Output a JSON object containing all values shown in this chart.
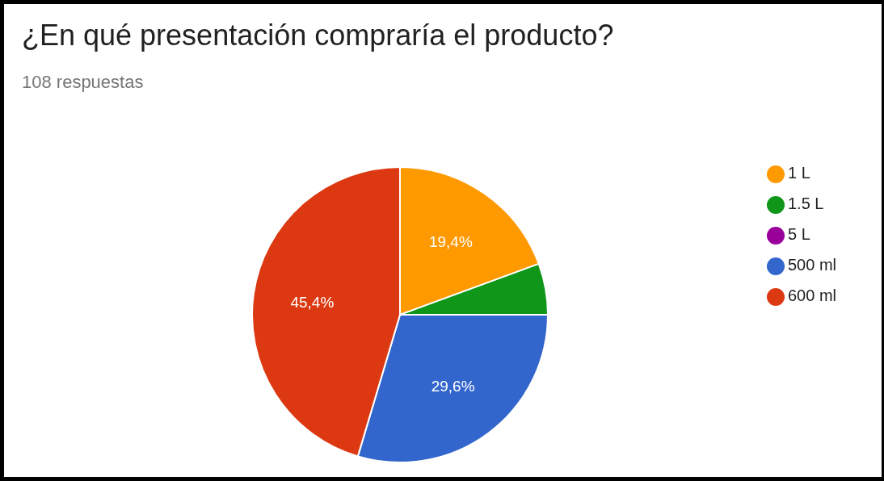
{
  "chart_data": {
    "type": "pie",
    "title": "¿En qué presentación compraría el producto?",
    "subtitle": "108 respuestas",
    "categories": [
      "500 ml",
      "600 ml",
      "1 L",
      "1.5 L",
      "5 L"
    ],
    "values": [
      29.6,
      45.4,
      19.4,
      5.6,
      0
    ],
    "colors": [
      "#3366cc",
      "#dc3912",
      "#ff9900",
      "#109618",
      "#990099"
    ],
    "value_labels": [
      "29,6%",
      "45,4%",
      "19,4%",
      null,
      null
    ],
    "legend": "right"
  }
}
